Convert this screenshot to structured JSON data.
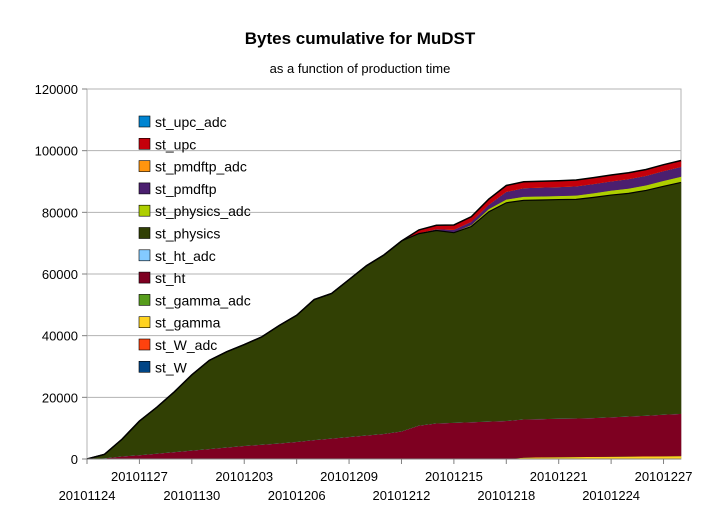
{
  "chart_data": {
    "type": "area",
    "stacked": true,
    "title": "Bytes cumulative for MuDST",
    "subtitle": "as a function of production time",
    "xlabel": "",
    "ylabel": "",
    "ylim": [
      0,
      120000
    ],
    "yticks": [
      "0",
      "20000",
      "40000",
      "60000",
      "80000",
      "100000",
      "120000"
    ],
    "xlim": [
      "20101124",
      "20101228"
    ],
    "xticks": [
      "20101124",
      "20101127",
      "20101130",
      "20101203",
      "20101206",
      "20101209",
      "20101212",
      "20101215",
      "20101218",
      "20101221",
      "20101224",
      "20101227"
    ],
    "grid": "horizontal",
    "legend": "top-left inside plot",
    "x": [
      "20101124",
      "20101125",
      "20101126",
      "20101127",
      "20101128",
      "20101129",
      "20101130",
      "20101201",
      "20101202",
      "20101203",
      "20101204",
      "20101205",
      "20101206",
      "20101207",
      "20101208",
      "20101209",
      "20101210",
      "20101211",
      "20101212",
      "20101213",
      "20101214",
      "20101215",
      "20101216",
      "20101217",
      "20101218",
      "20101219",
      "20101220",
      "20101221",
      "20101222",
      "20101223",
      "20101224",
      "20101225",
      "20101226",
      "20101227",
      "20101228"
    ],
    "series": [
      {
        "name": "st_W",
        "color": "#004586",
        "values": [
          0,
          0,
          0,
          0,
          0,
          0,
          0,
          0,
          0,
          0,
          0,
          0,
          0,
          0,
          0,
          0,
          0,
          0,
          0,
          0,
          0,
          0,
          0,
          0,
          0,
          0,
          0,
          0,
          0,
          0,
          0,
          0,
          0,
          0,
          0
        ]
      },
      {
        "name": "st_W_adc",
        "color": "#ff420e",
        "values": [
          0,
          0,
          0,
          0,
          0,
          0,
          0,
          0,
          0,
          0,
          0,
          0,
          0,
          0,
          0,
          0,
          0,
          0,
          0,
          0,
          0,
          0,
          0,
          0,
          0,
          0,
          0,
          0,
          0,
          0,
          0,
          0,
          0,
          0,
          0
        ]
      },
      {
        "name": "st_gamma",
        "color": "#ffd320",
        "values": [
          0,
          0,
          0,
          0,
          0,
          0,
          0,
          0,
          0,
          0,
          0,
          0,
          0,
          0,
          0,
          0,
          0,
          0,
          0,
          0,
          0,
          0,
          0,
          0,
          0,
          500,
          600,
          650,
          700,
          750,
          800,
          850,
          900,
          950,
          1000
        ]
      },
      {
        "name": "st_gamma_adc",
        "color": "#579d1c",
        "values": [
          0,
          0,
          0,
          0,
          0,
          0,
          0,
          0,
          0,
          0,
          0,
          0,
          0,
          0,
          0,
          0,
          0,
          0,
          0,
          0,
          0,
          0,
          0,
          0,
          0,
          0,
          0,
          0,
          0,
          0,
          0,
          0,
          0,
          0,
          0
        ]
      },
      {
        "name": "st_ht",
        "color": "#7e0021",
        "values": [
          0,
          300,
          900,
          1300,
          1800,
          2300,
          2800,
          3300,
          3800,
          4300,
          4700,
          5100,
          5600,
          6200,
          6700,
          7200,
          7700,
          8200,
          9000,
          10900,
          11600,
          11800,
          12000,
          12200,
          12400,
          12400,
          12400,
          12500,
          12500,
          12600,
          12800,
          13000,
          13200,
          13500,
          13700
        ]
      },
      {
        "name": "st_ht_adc",
        "color": "#83caff",
        "values": [
          0,
          0,
          0,
          0,
          0,
          0,
          0,
          0,
          0,
          0,
          0,
          0,
          0,
          0,
          0,
          0,
          0,
          0,
          0,
          0,
          0,
          0,
          0,
          0,
          0,
          0,
          0,
          0,
          0,
          0,
          0,
          0,
          0,
          0,
          0
        ]
      },
      {
        "name": "st_physics",
        "color": "#314004",
        "values": [
          0,
          1200,
          5500,
          11000,
          15000,
          19500,
          24500,
          28700,
          31000,
          32800,
          34900,
          38200,
          41000,
          45500,
          47000,
          51000,
          55000,
          58000,
          61700,
          62200,
          62500,
          61600,
          63400,
          68000,
          70700,
          71000,
          71000,
          71000,
          71000,
          71500,
          72000,
          72300,
          73000,
          74000,
          75000
        ]
      },
      {
        "name": "st_physics_adc",
        "color": "#aecf00",
        "values": [
          0,
          0,
          0,
          0,
          0,
          0,
          0,
          0,
          0,
          0,
          0,
          0,
          0,
          0,
          0,
          0,
          0,
          0,
          0,
          0,
          0,
          200,
          500,
          900,
          1100,
          1200,
          1200,
          1200,
          1300,
          1400,
          1500,
          1600,
          1700,
          1800,
          1900
        ]
      },
      {
        "name": "st_pmdftp",
        "color": "#4b1f6f",
        "values": [
          0,
          0,
          0,
          0,
          0,
          0,
          0,
          0,
          0,
          0,
          0,
          0,
          0,
          0,
          0,
          0,
          0,
          0,
          0,
          200,
          500,
          800,
          1100,
          1400,
          2500,
          2800,
          2900,
          2900,
          3000,
          3000,
          3000,
          3100,
          3100,
          3200,
          3200
        ]
      },
      {
        "name": "st_pmdftp_adc",
        "color": "#ff950e",
        "values": [
          0,
          0,
          0,
          0,
          0,
          0,
          0,
          0,
          0,
          0,
          0,
          0,
          0,
          0,
          0,
          0,
          0,
          0,
          0,
          0,
          0,
          0,
          0,
          0,
          0,
          0,
          0,
          0,
          0,
          0,
          0,
          0,
          0,
          0,
          0
        ]
      },
      {
        "name": "st_upc",
        "color": "#c5000b",
        "values": [
          0,
          0,
          0,
          0,
          0,
          0,
          0,
          0,
          0,
          0,
          0,
          0,
          0,
          0,
          0,
          0,
          0,
          0,
          0,
          1000,
          1200,
          1500,
          1600,
          1800,
          2000,
          2000,
          2000,
          2000,
          2000,
          2000,
          2000,
          2000,
          2000,
          2000,
          2000
        ]
      },
      {
        "name": "st_upc_adc",
        "color": "#0084d1",
        "values": [
          0,
          0,
          0,
          0,
          0,
          0,
          0,
          0,
          0,
          0,
          0,
          0,
          0,
          0,
          0,
          0,
          0,
          0,
          0,
          0,
          0,
          0,
          0,
          0,
          0,
          0,
          0,
          0,
          0,
          0,
          0,
          0,
          0,
          0,
          0
        ]
      }
    ],
    "legend_order": [
      "st_upc_adc",
      "st_upc",
      "st_pmdftp_adc",
      "st_pmdftp",
      "st_physics_adc",
      "st_physics",
      "st_ht_adc",
      "st_ht",
      "st_gamma_adc",
      "st_gamma",
      "st_W_adc",
      "st_W"
    ]
  }
}
